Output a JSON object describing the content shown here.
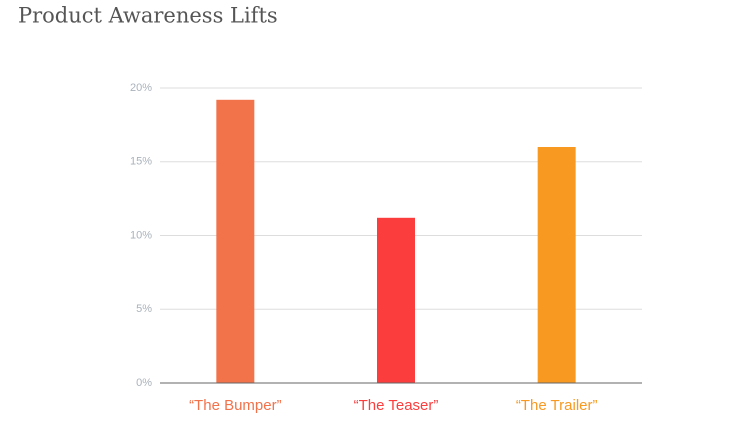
{
  "chart_data": {
    "type": "bar",
    "title": "Product Awareness Lifts",
    "categories": [
      "“The Bumper”",
      "“The Teaser”",
      "“The Trailer”"
    ],
    "values": [
      19.2,
      11.2,
      16.0
    ],
    "colors": [
      "#f2724a",
      "#fc3d3e",
      "#f89a22"
    ],
    "ylim": [
      0,
      20
    ],
    "yticks": [
      {
        "value": 0,
        "label": "0%"
      },
      {
        "value": 5,
        "label": "5%"
      },
      {
        "value": 10,
        "label": "10%"
      },
      {
        "value": 15,
        "label": "15%"
      },
      {
        "value": 20,
        "label": "20%"
      }
    ],
    "grid": true
  }
}
